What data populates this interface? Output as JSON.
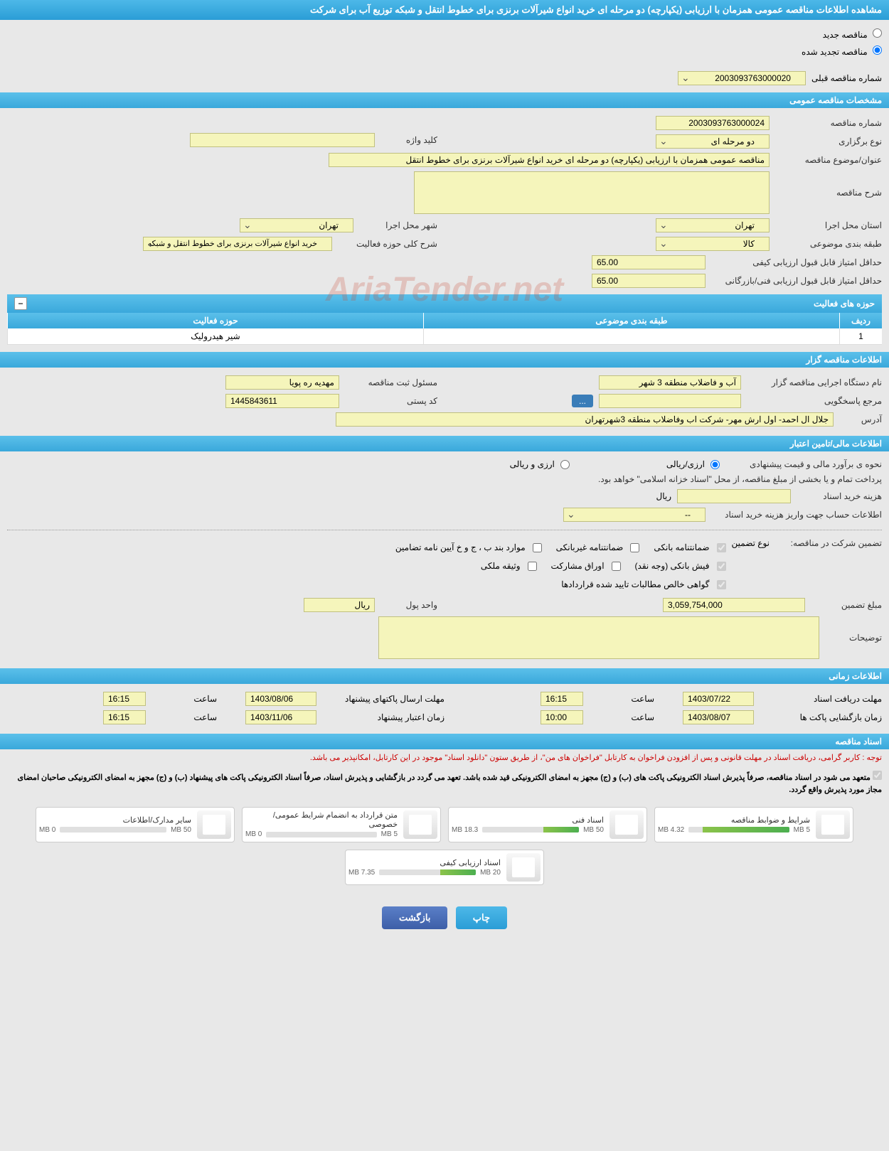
{
  "page_title": "مشاهده اطلاعات مناقصه عمومی همزمان با ارزیابی (یکپارچه) دو مرحله ای خرید انواع شیرآلات برنزی برای خطوط انتقل و شبکه توزیع آب برای شرکت",
  "radio_options": {
    "new_tender": "مناقصه جدید",
    "renewed_tender": "مناقصه تجدید شده"
  },
  "prev_number": {
    "label": "شماره مناقصه قبلی",
    "value": "2003093763000020"
  },
  "sections": {
    "general": "مشخصات مناقصه عمومی",
    "activities": "حوزه های فعالیت",
    "organizer": "اطلاعات مناقصه گزار",
    "financial": "اطلاعات مالی/تامین اعتبار",
    "timing": "اطلاعات زمانی",
    "documents": "اسناد مناقصه"
  },
  "general": {
    "tender_number_label": "شماره مناقصه",
    "tender_number": "2003093763000024",
    "holding_type_label": "نوع برگزاری",
    "holding_type": "دو مرحله ای",
    "keyword_label": "کلید واژه",
    "keyword": "",
    "subject_label": "عنوان/موضوع مناقصه",
    "subject": "مناقصه عمومی همزمان با ارزیابی (یکپارچه) دو مرحله ای خرید انواع شیرآلات برنزی برای خطوط انتقل",
    "description_label": "شرح مناقصه",
    "description": "",
    "exec_province_label": "استان محل اجرا",
    "exec_province": "تهران",
    "exec_city_label": "شهر محل اجرا",
    "exec_city": "تهران",
    "category_label": "طبقه بندی موضوعی",
    "category": "کالا",
    "activity_desc_label": "شرح کلی حوزه فعالیت",
    "activity_desc": "خرید انواع شیرآلات برنزی برای خطوط انتقل و شبکه",
    "min_quality_score_label": "حداقل امتیاز قابل قبول ارزیابی کیفی",
    "min_quality_score": "65.00",
    "min_tech_score_label": "حداقل امتیاز قابل قبول ارزیابی فنی/بازرگانی",
    "min_tech_score": "65.00"
  },
  "activity_table": {
    "headers": {
      "row": "ردیف",
      "category": "طبقه بندی موضوعی",
      "activity": "حوزه فعالیت"
    },
    "rows": [
      {
        "row": "1",
        "category": "",
        "activity": "شیر هیدرولیک"
      }
    ]
  },
  "organizer": {
    "org_name_label": "نام دستگاه اجرایی مناقصه گزار",
    "org_name": "آب و فاضلاب منطقه 3 شهر",
    "registrar_label": "مسئول ثبت مناقصه",
    "registrar": "مهدیه ره پویا",
    "contact_label": "مرجع پاسخگویی",
    "contact": "",
    "postal_label": "کد پستی",
    "postal": "1445843611",
    "address_label": "آدرس",
    "address": "جلال ال احمد- اول ارش مهر- شرکت اب وفاضلاب منطقه 3شهرتهران",
    "more_btn": "..."
  },
  "financial": {
    "estimate_method_label": "نحوه ی برآورد مالی و قیمت پیشنهادی",
    "option_rial": "ارزی/ریالی",
    "option_fx": "ارزی و ریالی",
    "payment_note": "پرداخت تمام و یا بخشی از مبلغ مناقصه، از محل \"اسناد خزانه اسلامی\" خواهد بود.",
    "doc_cost_label": "هزینه خرید اسناد",
    "doc_cost": "",
    "currency_rial": "ریال",
    "account_info_label": "اطلاعات حساب جهت واریز هزینه خرید اسناد",
    "account_info": "--",
    "guarantee_label": "تضمین شرکت در مناقصه:",
    "guarantee_type_label": "نوع تضمین",
    "gt_bank": "ضمانتنامه بانکی",
    "gt_nonbank": "ضمانتنامه غیربانکی",
    "gt_items": "موارد بند ب ، ج و خ آیین نامه تضامین",
    "gt_cash": "فیش بانکی (وجه نقد)",
    "gt_bonds": "اوراق مشاركت",
    "gt_property": "وثیقه ملكی",
    "gt_receivables": "گواهی خالص مطالبات تایید شده قراردادها",
    "guarantee_amount_label": "مبلغ تضمین",
    "guarantee_amount": "3,059,754,000",
    "currency_unit_label": "واحد پول",
    "currency_unit": "ریال",
    "notes_label": "توضیحات",
    "notes": ""
  },
  "timing": {
    "doc_receive_label": "مهلت دریافت اسناد",
    "doc_receive_date": "1403/07/22",
    "doc_receive_time_label": "ساعت",
    "doc_receive_time": "16:15",
    "envelope_send_label": "مهلت ارسال پاکتهای پیشنهاد",
    "envelope_send_date": "1403/08/06",
    "envelope_send_time": "16:15",
    "envelope_open_label": "زمان بازگشایی پاکت ها",
    "envelope_open_date": "1403/08/07",
    "envelope_open_time": "10:00",
    "validity_label": "زمان اعتبار پیشنهاد",
    "validity_date": "1403/11/06",
    "validity_time": "16:15"
  },
  "notices": {
    "red": "توجه : کاربر گرامی، دریافت اسناد در مهلت قانونی و پس از افزودن فراخوان به کارتابل \"فراخوان های من\"، از طریق ستون \"دانلود اسناد\" موجود در این کارتابل، امکانپذیر می باشد.",
    "black": "متعهد می شود در اسناد مناقصه، صرفاً پذیرش اسناد الکترونیکی پاکت های (ب) و (ج) مجهز به امضای الکترونیکی قید شده باشد. تعهد می گردد در بازگشایی و پذیرش اسناد، صرفاً اسناد الکترونیکی پاکت های پیشنهاد (ب) و (ج) مجهز به امضای الکترونیکی صاحبان امضای مجاز مورد پذیرش واقع گردد."
  },
  "documents": [
    {
      "title": "شرایط و ضوابط مناقصه",
      "used": "4.32 MB",
      "total": "5 MB",
      "pct": 86
    },
    {
      "title": "اسناد فنی",
      "used": "18.3 MB",
      "total": "50 MB",
      "pct": 37
    },
    {
      "title": "متن قرارداد به انضمام شرایط عمومی/خصوصی",
      "used": "0 MB",
      "total": "5 MB",
      "pct": 0
    },
    {
      "title": "سایر مدارک/اطلاعات",
      "used": "0 MB",
      "total": "50 MB",
      "pct": 0
    },
    {
      "title": "اسناد ارزیابی کیفی",
      "used": "7.35 MB",
      "total": "20 MB",
      "pct": 37
    }
  ],
  "buttons": {
    "print": "چاپ",
    "back": "بازگشت"
  },
  "watermark": "AriaTender.net",
  "colors": {
    "header_bg": "#3aa8db",
    "yellow_field": "#f5f5bb",
    "red_text": "#cc0000",
    "progress_green": "#8bc34a"
  }
}
